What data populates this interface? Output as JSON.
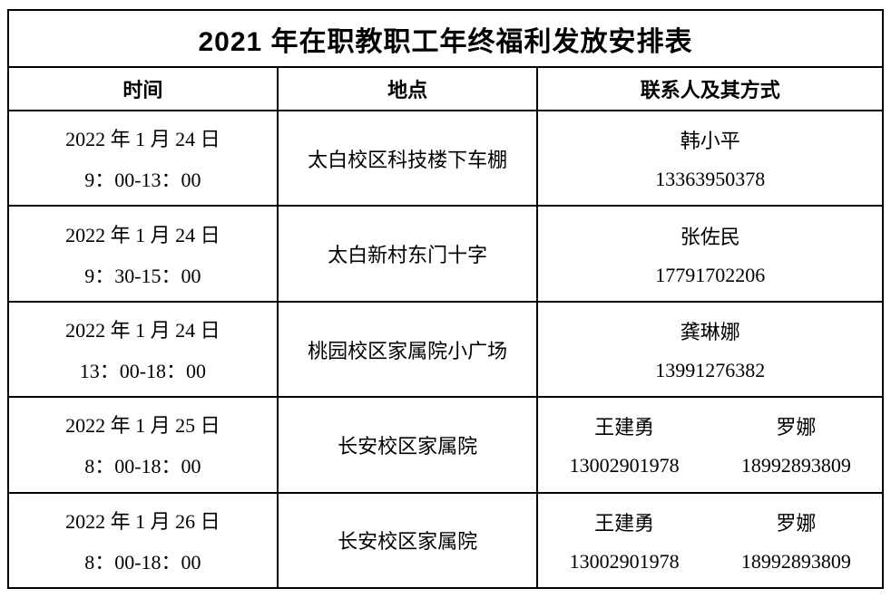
{
  "page": {
    "background_color": "#ffffff",
    "border_color": "#000000",
    "text_color": "#000000"
  },
  "table": {
    "title": "2021 年在职教职工年终福利发放安排表",
    "headers": {
      "time": "时间",
      "location": "地点",
      "contact": "联系人及其方式"
    },
    "rows": [
      {
        "date": "2022 年 1 月 24 日",
        "time": "9：00-13：00",
        "location": "太白校区科技楼下车棚",
        "contacts": [
          {
            "name": "韩小平",
            "phone": "13363950378"
          }
        ]
      },
      {
        "date": "2022 年 1 月 24 日",
        "time": "9：30-15：00",
        "location": "太白新村东门十字",
        "contacts": [
          {
            "name": "张佐民",
            "phone": "17791702206"
          }
        ]
      },
      {
        "date": "2022 年 1 月 24 日",
        "time": "13：00-18：00",
        "location": "桃园校区家属院小广场",
        "contacts": [
          {
            "name": "龚琳娜",
            "phone": "13991276382"
          }
        ]
      },
      {
        "date": "2022 年 1 月 25 日",
        "time": "8：00-18：00",
        "location": "长安校区家属院",
        "contacts": [
          {
            "name": "王建勇",
            "phone": "13002901978"
          },
          {
            "name": "罗娜",
            "phone": "18992893809"
          }
        ]
      },
      {
        "date": "2022 年 1 月 26 日",
        "time": "8：00-18：00",
        "location": "长安校区家属院",
        "contacts": [
          {
            "name": "王建勇",
            "phone": "13002901978"
          },
          {
            "name": "罗娜",
            "phone": "18992893809"
          }
        ]
      }
    ]
  }
}
